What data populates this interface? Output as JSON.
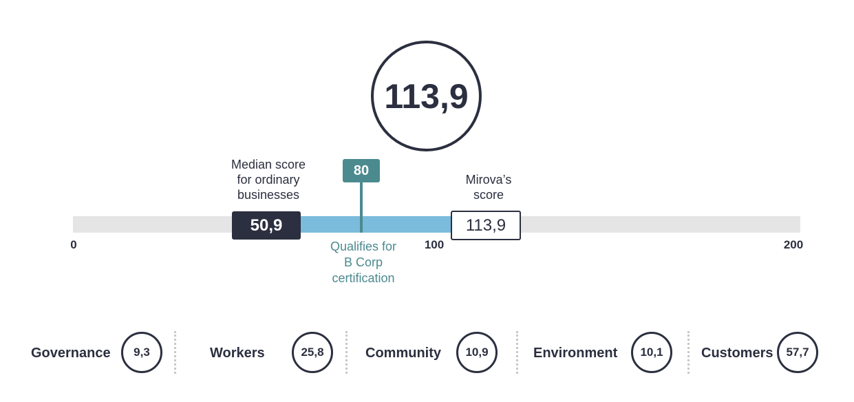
{
  "chart_data": {
    "type": "bar",
    "score": "113,9",
    "scale": {
      "min": 0,
      "max": 200,
      "ticks": [
        "0",
        "100",
        "200"
      ],
      "tick_values": [
        0,
        100,
        200
      ]
    },
    "median": {
      "value": 50.9,
      "label": "50,9",
      "caption_lines": [
        "Median score",
        "for ordinary",
        "businesses"
      ]
    },
    "mirova": {
      "value": 113.9,
      "label": "113,9",
      "caption_lines": [
        "Mirova’s",
        "score"
      ]
    },
    "threshold": {
      "value": 80,
      "label": "80",
      "caption_lines": [
        "Qualifies for",
        "B Corp",
        "certification"
      ]
    },
    "categories": [
      {
        "label": "Governance",
        "value": "9,3"
      },
      {
        "label": "Workers",
        "value": "25,8"
      },
      {
        "label": "Community",
        "value": "10,9"
      },
      {
        "label": "Environment",
        "value": "10,1"
      },
      {
        "label": "Customers",
        "value": "57,7"
      }
    ],
    "colors": {
      "dark": "#2b2f3f",
      "range": "#7bbbdc",
      "threshold": "#4b8a8f",
      "track": "#e5e5e5"
    }
  }
}
